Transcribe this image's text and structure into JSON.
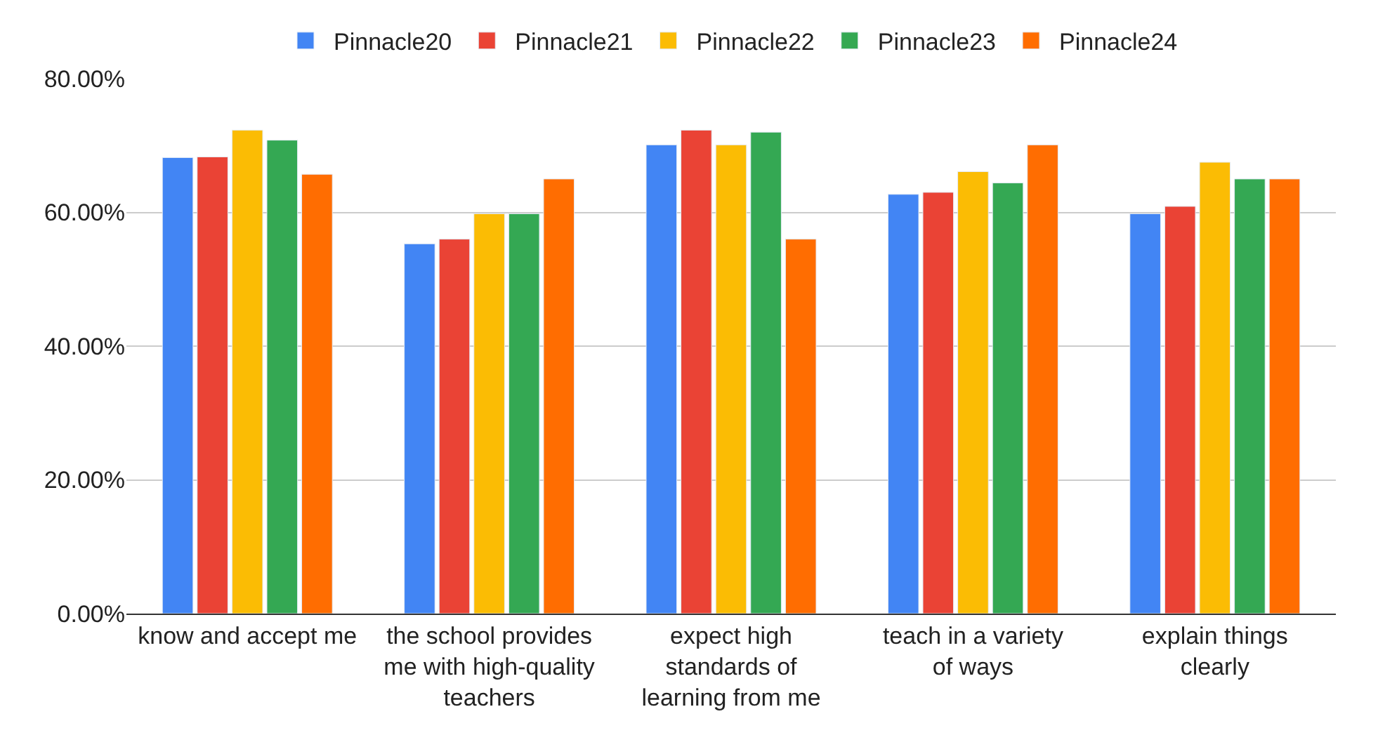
{
  "chart_data": {
    "type": "bar",
    "categories": [
      "know and accept me",
      "the school provides me with high-quality teachers",
      "expect high standards of learning from me",
      "teach in a variety of ways",
      "explain things clearly"
    ],
    "series": [
      {
        "name": "Pinnacle20",
        "color": "#4285f4",
        "values": [
          68.2,
          55.3,
          70.1,
          62.7,
          59.8
        ]
      },
      {
        "name": "Pinnacle21",
        "color": "#ea4335",
        "values": [
          68.3,
          56.0,
          72.3,
          63.0,
          60.9
        ]
      },
      {
        "name": "Pinnacle22",
        "color": "#fbbc04",
        "values": [
          72.3,
          59.8,
          70.1,
          66.1,
          67.5
        ]
      },
      {
        "name": "Pinnacle23",
        "color": "#34a853",
        "values": [
          70.8,
          59.8,
          72.0,
          64.4,
          65.0
        ]
      },
      {
        "name": "Pinnacle24",
        "color": "#ff6d01",
        "values": [
          65.7,
          65.0,
          56.0,
          70.1,
          65.0
        ]
      }
    ],
    "ylim": [
      0,
      80
    ],
    "yticks": [
      {
        "value": 0,
        "label": "0.00%"
      },
      {
        "value": 20,
        "label": "20.00%"
      },
      {
        "value": 40,
        "label": "40.00%"
      },
      {
        "value": 60,
        "label": "60.00%"
      },
      {
        "value": 80,
        "label": "80.00%"
      }
    ],
    "grid": "y",
    "legend": "top"
  }
}
